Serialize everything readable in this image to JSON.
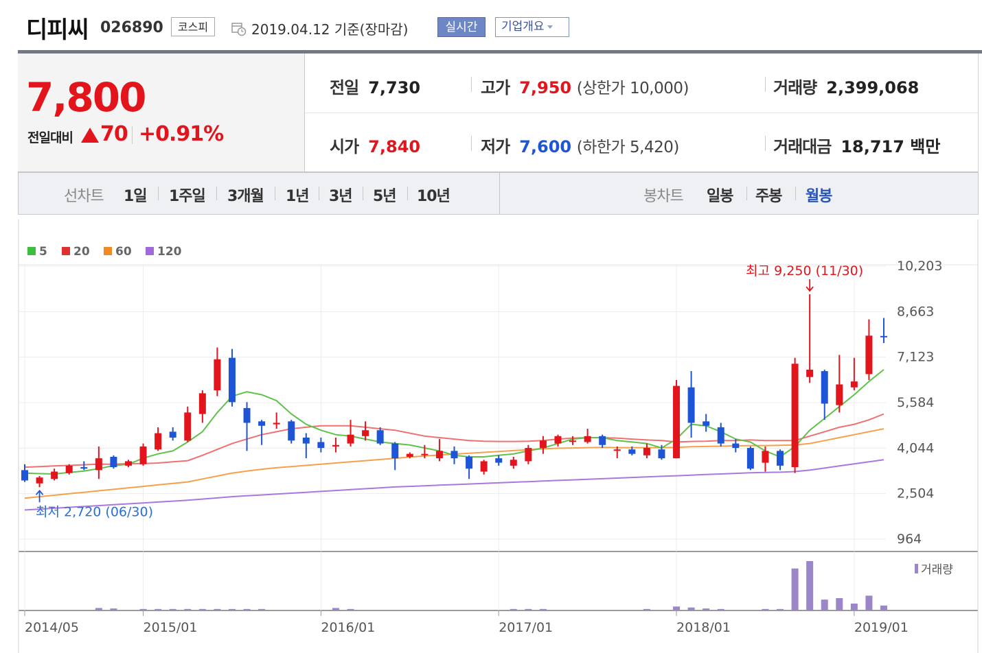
{
  "header": {
    "company_name": "디피씨",
    "stock_code": "026890",
    "market": "코스피",
    "base_date": "2019.04.12 기준(장마감)",
    "realtime_label": "실시간",
    "company_info_label": "기업개요"
  },
  "summary": {
    "price": "7,800",
    "change_label": "전일대비",
    "change_value": "70",
    "change_pct": "+0.91%",
    "prev_close_label": "전일",
    "prev_close": "7,730",
    "high_label": "고가",
    "high": "7,950",
    "upper_limit": "(상한가 10,000)",
    "volume_label": "거래량",
    "volume": "2,399,068",
    "open_label": "시가",
    "open": "7,840",
    "low_label": "저가",
    "low": "7,600",
    "lower_limit": "(하한가 5,420)",
    "trade_value_label": "거래대금",
    "trade_value": "18,717 백만"
  },
  "tabs": {
    "line_header": "선차트",
    "line_periods": [
      "1일",
      "1주일",
      "3개월",
      "1년",
      "3년",
      "5년",
      "10년"
    ],
    "candle_header": "봉차트",
    "candle_periods": [
      "일봉",
      "주봉",
      "월봉"
    ],
    "active_candle": "월봉"
  },
  "colors": {
    "up": "#e2141c",
    "down": "#1e55d6",
    "ma5": "#5ec248",
    "ma20": "#f07070",
    "ma60": "#f5a04a",
    "ma120": "#a877e0",
    "volume": "#9b86c8"
  },
  "chart_data": {
    "type": "candlestick",
    "interval": "monthly",
    "legend": [
      {
        "name": "5",
        "color": "#3ebd3e"
      },
      {
        "name": "20",
        "color": "#e03030"
      },
      {
        "name": "60",
        "color": "#f08a24"
      },
      {
        "name": "120",
        "color": "#a06ad8"
      }
    ],
    "y_ticks": [
      "10,203",
      "8,663",
      "7,123",
      "5,584",
      "4,044",
      "2,504",
      "964"
    ],
    "ylim": [
      964,
      10203
    ],
    "x_ticks": [
      "2014/05",
      "2015/01",
      "2016/01",
      "2017/01",
      "2018/01",
      "2019/01"
    ],
    "annotations": {
      "high_text": "최고 9,250 (11/30)",
      "low_text": "최저 2,720 (06/30)"
    },
    "volume_label": "거래량",
    "candles": [
      {
        "o": 3300,
        "c": 2950,
        "h": 3500,
        "l": 2900
      },
      {
        "o": 2850,
        "c": 3050,
        "h": 3100,
        "l": 2720
      },
      {
        "o": 3000,
        "c": 3250,
        "h": 3350,
        "l": 2950
      },
      {
        "o": 3200,
        "c": 3450,
        "h": 3500,
        "l": 3150
      },
      {
        "o": 3400,
        "c": 3350,
        "h": 3600,
        "l": 3300
      },
      {
        "o": 3300,
        "c": 3700,
        "h": 4100,
        "l": 3000
      },
      {
        "o": 3750,
        "c": 3400,
        "h": 3800,
        "l": 3350
      },
      {
        "o": 3450,
        "c": 3600,
        "h": 3650,
        "l": 3400
      },
      {
        "o": 3500,
        "c": 4100,
        "h": 4200,
        "l": 3450
      },
      {
        "o": 4000,
        "c": 4550,
        "h": 4750,
        "l": 3950
      },
      {
        "o": 4600,
        "c": 4400,
        "h": 4750,
        "l": 4300
      },
      {
        "o": 4300,
        "c": 5250,
        "h": 5450,
        "l": 4250
      },
      {
        "o": 5200,
        "c": 5900,
        "h": 6000,
        "l": 4900
      },
      {
        "o": 6000,
        "c": 7050,
        "h": 7450,
        "l": 5800
      },
      {
        "o": 7100,
        "c": 5600,
        "h": 7400,
        "l": 5450
      },
      {
        "o": 5400,
        "c": 4900,
        "h": 5600,
        "l": 3950
      },
      {
        "o": 4950,
        "c": 4800,
        "h": 5000,
        "l": 4150
      },
      {
        "o": 4850,
        "c": 4900,
        "h": 5250,
        "l": 4700
      },
      {
        "o": 4950,
        "c": 4300,
        "h": 5000,
        "l": 4200
      },
      {
        "o": 4400,
        "c": 4200,
        "h": 4550,
        "l": 3700
      },
      {
        "o": 4250,
        "c": 4050,
        "h": 4400,
        "l": 3900
      },
      {
        "o": 4100,
        "c": 4150,
        "h": 4400,
        "l": 3900
      },
      {
        "o": 4200,
        "c": 4500,
        "h": 5000,
        "l": 4100
      },
      {
        "o": 4450,
        "c": 4650,
        "h": 4950,
        "l": 4300
      },
      {
        "o": 4650,
        "c": 4200,
        "h": 4750,
        "l": 4150
      },
      {
        "o": 4200,
        "c": 3700,
        "h": 4250,
        "l": 3300
      },
      {
        "o": 3750,
        "c": 3850,
        "h": 3900,
        "l": 3700
      },
      {
        "o": 3850,
        "c": 3850,
        "h": 4150,
        "l": 3700
      },
      {
        "o": 3700,
        "c": 3950,
        "h": 4350,
        "l": 3600
      },
      {
        "o": 3950,
        "c": 3700,
        "h": 4100,
        "l": 3500
      },
      {
        "o": 3750,
        "c": 3350,
        "h": 3800,
        "l": 3000
      },
      {
        "o": 3250,
        "c": 3600,
        "h": 3650,
        "l": 3150
      },
      {
        "o": 3700,
        "c": 3550,
        "h": 3800,
        "l": 3450
      },
      {
        "o": 3450,
        "c": 3650,
        "h": 3750,
        "l": 3350
      },
      {
        "o": 3600,
        "c": 4050,
        "h": 4150,
        "l": 3500
      },
      {
        "o": 4050,
        "c": 4300,
        "h": 4450,
        "l": 3850
      },
      {
        "o": 4200,
        "c": 4450,
        "h": 4500,
        "l": 4100
      },
      {
        "o": 4300,
        "c": 4300,
        "h": 4450,
        "l": 4150
      },
      {
        "o": 4250,
        "c": 4450,
        "h": 4700,
        "l": 4200
      },
      {
        "o": 4450,
        "c": 4150,
        "h": 4500,
        "l": 4050
      },
      {
        "o": 4000,
        "c": 4000,
        "h": 4100,
        "l": 3700
      },
      {
        "o": 4000,
        "c": 3850,
        "h": 4100,
        "l": 3800
      },
      {
        "o": 3800,
        "c": 4050,
        "h": 4200,
        "l": 3700
      },
      {
        "o": 4000,
        "c": 3700,
        "h": 4150,
        "l": 3650
      },
      {
        "o": 3700,
        "c": 6150,
        "h": 6350,
        "l": 3700
      },
      {
        "o": 6100,
        "c": 4900,
        "h": 6650,
        "l": 4400
      },
      {
        "o": 4950,
        "c": 4800,
        "h": 5200,
        "l": 4600
      },
      {
        "o": 4750,
        "c": 4200,
        "h": 4900,
        "l": 4100
      },
      {
        "o": 4200,
        "c": 4050,
        "h": 4350,
        "l": 3900
      },
      {
        "o": 4050,
        "c": 3350,
        "h": 4100,
        "l": 3300
      },
      {
        "o": 3550,
        "c": 3950,
        "h": 4100,
        "l": 3250
      },
      {
        "o": 3950,
        "c": 3450,
        "h": 4000,
        "l": 3300
      },
      {
        "o": 3400,
        "c": 6900,
        "h": 7100,
        "l": 3200
      },
      {
        "o": 6450,
        "c": 6700,
        "h": 9250,
        "l": 6250
      },
      {
        "o": 6650,
        "c": 5550,
        "h": 6700,
        "l": 5000
      },
      {
        "o": 5500,
        "c": 6200,
        "h": 7200,
        "l": 5250
      },
      {
        "o": 6100,
        "c": 6300,
        "h": 7100,
        "l": 6000
      },
      {
        "o": 6550,
        "c": 7850,
        "h": 8400,
        "l": 6350
      },
      {
        "o": 7840,
        "c": 7800,
        "h": 8450,
        "l": 7600
      }
    ],
    "volumes": [
      0,
      0,
      0,
      0,
      0,
      0.05,
      0.04,
      0,
      0.03,
      0.03,
      0.03,
      0.03,
      0.03,
      0.03,
      0.03,
      0.03,
      0.03,
      0,
      0,
      0,
      0,
      0.05,
      0.03,
      0,
      0,
      0,
      0,
      0,
      0,
      0,
      0,
      0,
      0,
      0.03,
      0.03,
      0.03,
      0,
      0,
      0,
      0,
      0,
      0,
      0.03,
      0,
      0.08,
      0.06,
      0.04,
      0.03,
      0,
      0,
      0.03,
      0.03,
      0.85,
      1.0,
      0.22,
      0.25,
      0.14,
      0.3,
      0.1
    ],
    "ma5": [
      3200,
      3180,
      3170,
      3220,
      3270,
      3350,
      3450,
      3500,
      3700,
      3850,
      3950,
      4250,
      4600,
      5250,
      5800,
      5950,
      5850,
      5650,
      5200,
      4850,
      4650,
      4500,
      4450,
      4350,
      4250,
      4200,
      4150,
      4050,
      3950,
      3800,
      3750,
      3750,
      3800,
      3850,
      3950,
      4050,
      4200,
      4350,
      4400,
      4400,
      4300,
      4250,
      4200,
      4050,
      4350,
      4850,
      4800,
      4600,
      4350,
      4250,
      3950,
      3750,
      4100,
      4650,
      5050,
      5450,
      5850,
      6300,
      6700
    ],
    "ma20": [
      3400,
      3420,
      3440,
      3460,
      3480,
      3500,
      3500,
      3520,
      3520,
      3540,
      3580,
      3620,
      3800,
      4000,
      4200,
      4350,
      4500,
      4600,
      4700,
      4750,
      4800,
      4800,
      4800,
      4750,
      4700,
      4650,
      4550,
      4450,
      4400,
      4350,
      4300,
      4280,
      4270,
      4270,
      4280,
      4300,
      4350,
      4380,
      4400,
      4400,
      4380,
      4350,
      4320,
      4300,
      4250,
      4270,
      4280,
      4300,
      4300,
      4320,
      4300,
      4300,
      4300,
      4450,
      4600,
      4750,
      4850,
      5000,
      5200
    ],
    "ma60": [
      2350,
      2400,
      2450,
      2500,
      2550,
      2600,
      2650,
      2700,
      2750,
      2800,
      2850,
      2900,
      3000,
      3100,
      3200,
      3270,
      3330,
      3380,
      3420,
      3460,
      3500,
      3540,
      3580,
      3620,
      3660,
      3700,
      3740,
      3780,
      3810,
      3840,
      3870,
      3900,
      3930,
      3960,
      3990,
      4020,
      4040,
      4050,
      4060,
      4070,
      4060,
      4060,
      4060,
      4060,
      4070,
      4090,
      4100,
      4110,
      4120,
      4130,
      4130,
      4140,
      4150,
      4200,
      4300,
      4400,
      4500,
      4600,
      4700
    ],
    "ma120": [
      1950,
      1980,
      2010,
      2040,
      2070,
      2100,
      2130,
      2160,
      2190,
      2220,
      2250,
      2280,
      2320,
      2360,
      2400,
      2430,
      2460,
      2490,
      2520,
      2550,
      2580,
      2610,
      2640,
      2670,
      2700,
      2730,
      2750,
      2770,
      2790,
      2810,
      2830,
      2850,
      2870,
      2890,
      2910,
      2930,
      2950,
      2970,
      2990,
      3010,
      3030,
      3050,
      3070,
      3090,
      3110,
      3130,
      3150,
      3170,
      3190,
      3210,
      3220,
      3230,
      3250,
      3300,
      3370,
      3440,
      3510,
      3580,
      3650
    ]
  }
}
